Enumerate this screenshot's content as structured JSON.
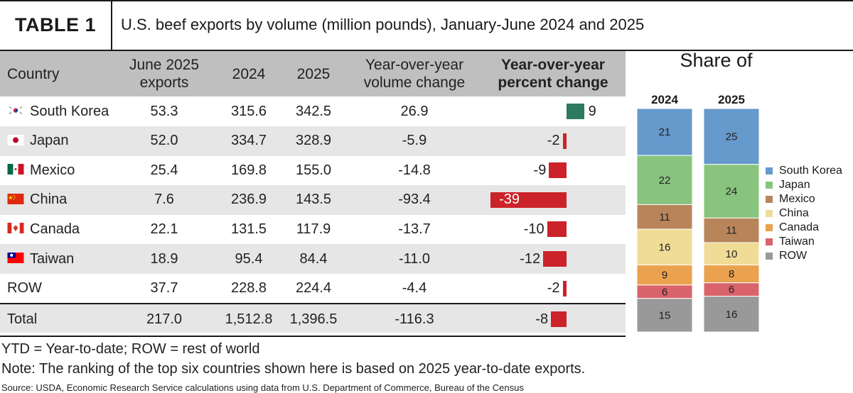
{
  "header": {
    "table_label": "TABLE 1",
    "title": "U.S. beef exports by volume (million pounds), January-June 2024 and 2025"
  },
  "table": {
    "columns": [
      "Country",
      "June 2025 exports",
      "2024",
      "2025",
      "Year-over-year volume change",
      "Year-over-year percent change"
    ],
    "rows": [
      {
        "country": "South Korea",
        "flag": "south-korea",
        "june": "53.3",
        "y2024": "315.6",
        "y2025": "342.5",
        "vol_change": "26.9",
        "pct_label": "9",
        "pct": 9
      },
      {
        "country": "Japan",
        "flag": "japan",
        "june": "52.0",
        "y2024": "334.7",
        "y2025": "328.9",
        "vol_change": "-5.9",
        "pct_label": "-2",
        "pct": -2
      },
      {
        "country": "Mexico",
        "flag": "mexico",
        "june": "25.4",
        "y2024": "169.8",
        "y2025": "155.0",
        "vol_change": "-14.8",
        "pct_label": "-9",
        "pct": -9
      },
      {
        "country": "China",
        "flag": "china",
        "june": "7.6",
        "y2024": "236.9",
        "y2025": "143.5",
        "vol_change": "-93.4",
        "pct_label": "-39",
        "pct": -39
      },
      {
        "country": "Canada",
        "flag": "canada",
        "june": "22.1",
        "y2024": "131.5",
        "y2025": "117.9",
        "vol_change": "-13.7",
        "pct_label": "-10",
        "pct": -10
      },
      {
        "country": "Taiwan",
        "flag": "taiwan",
        "june": "18.9",
        "y2024": "95.4",
        "y2025": "84.4",
        "vol_change": "-11.0",
        "pct_label": "-12",
        "pct": -12
      },
      {
        "country": "ROW",
        "flag": "",
        "june": "37.7",
        "y2024": "228.8",
        "y2025": "224.4",
        "vol_change": "-4.4",
        "pct_label": "-2",
        "pct": -2
      },
      {
        "country": "Total",
        "flag": "",
        "june": "217.0",
        "y2024": "1,512.8",
        "y2025": "1,396.5",
        "vol_change": "-116.3",
        "pct_label": "-8",
        "pct": -8
      }
    ],
    "colors": {
      "positive": "#2e7a60",
      "negative": "#cc2229"
    }
  },
  "chart_data": {
    "type": "bar",
    "title": "Share of",
    "stacked": true,
    "categories": [
      "2024",
      "2025"
    ],
    "series": [
      {
        "name": "South Korea",
        "values": [
          21,
          25
        ],
        "color": "#6699cc"
      },
      {
        "name": "Japan",
        "values": [
          22,
          24
        ],
        "color": "#88c47e"
      },
      {
        "name": "Mexico",
        "values": [
          11,
          11
        ],
        "color": "#b8855a"
      },
      {
        "name": "China",
        "values": [
          16,
          10
        ],
        "color": "#f0dc96"
      },
      {
        "name": "Canada",
        "values": [
          9,
          8
        ],
        "color": "#eba24f"
      },
      {
        "name": "Taiwan",
        "values": [
          6,
          6
        ],
        "color": "#d9636b"
      },
      {
        "name": "ROW",
        "values": [
          15,
          16
        ],
        "color": "#999999"
      }
    ],
    "legend_position": "right"
  },
  "footer": {
    "abbrev": "YTD = Year-to-date; ROW = rest of world",
    "note": "Note: The ranking of the top six countries shown here is based on 2025 year-to-date exports.",
    "source": "Source: USDA, Economic Research Service calculations using data from U.S. Department of Commerce, Bureau of the Census"
  }
}
